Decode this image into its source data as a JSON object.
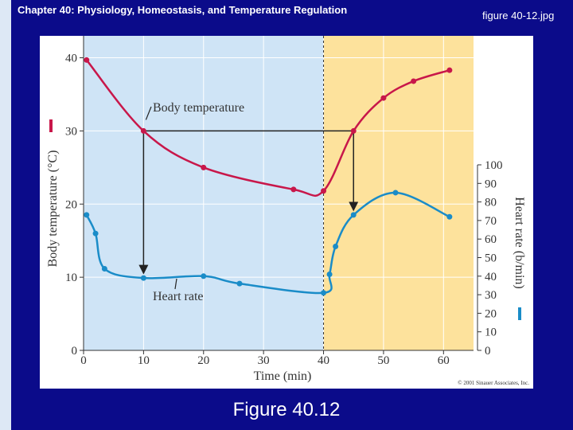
{
  "header": {
    "title": "Chapter 40: Physiology, Homeostasis, and Temperature Regulation",
    "filename": "figure 40-12.jpg"
  },
  "caption": "Figure 40.12",
  "chart_data": {
    "type": "line",
    "xlabel": "Time (min)",
    "ylabel": "Body temperature (°C)",
    "y2label": "Heart rate (b/min)",
    "annotations": [
      "Body temperature",
      "Heart rate"
    ],
    "credit": "© 2001 Sinauer Associates, Inc.",
    "xlim": [
      0,
      65
    ],
    "xticks": [
      0,
      10,
      20,
      30,
      40,
      50,
      60
    ],
    "ylim": [
      0,
      43
    ],
    "yticks": [
      0,
      10,
      20,
      30,
      40
    ],
    "y2lim": [
      0,
      100
    ],
    "y2ticks": [
      0,
      10,
      20,
      30,
      40,
      50,
      60,
      70,
      80,
      90,
      100
    ],
    "grid": true,
    "series": [
      {
        "name": "Body temperature",
        "color": "#c8174a",
        "x": [
          0.5,
          10,
          20,
          35,
          40,
          45,
          50,
          55,
          61
        ],
        "values": [
          39.7,
          30,
          25,
          22,
          21.8,
          30,
          34.5,
          36.8,
          38.3
        ]
      },
      {
        "name": "Heart rate",
        "color": "#1a8cc8",
        "axis": "y2",
        "x": [
          0.5,
          2,
          3.5,
          10,
          20,
          26,
          40,
          41,
          42,
          45,
          52,
          61
        ],
        "values": [
          73,
          63,
          44,
          39,
          40,
          36,
          31,
          41,
          56,
          73,
          85,
          72
        ]
      }
    ]
  }
}
